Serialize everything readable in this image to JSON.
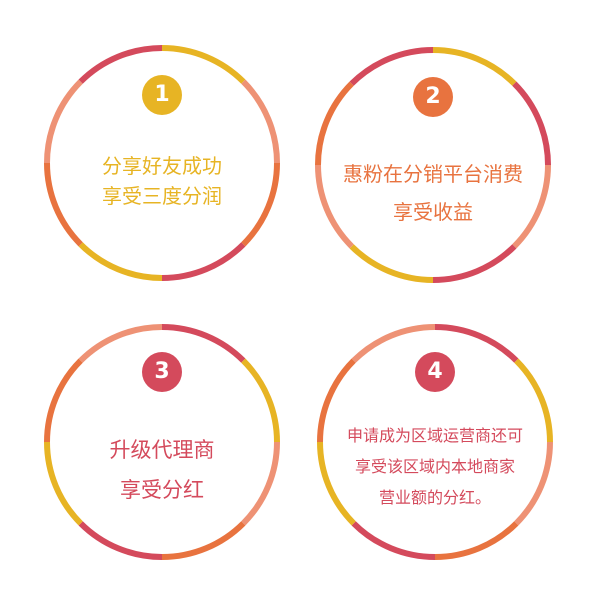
{
  "colors": {
    "yellow": "#e7b424",
    "orange": "#e8733f",
    "red": "#d44a5c",
    "salmon": "#ee9275"
  },
  "cards": [
    {
      "number": "1",
      "lines": [
        "分享好友成功",
        "享受三度分润"
      ],
      "text_color": "#e7b424",
      "badge_color": "#e7b424",
      "ring_segments": [
        "#e7b424",
        "#ee9275",
        "#e8733f",
        "#d44a5c",
        "#e7b424",
        "#e8733f",
        "#ee9275",
        "#d44a5c"
      ]
    },
    {
      "number": "2",
      "lines": [
        "惠粉在分销平台消费",
        "享受收益"
      ],
      "text_color": "#e8733f",
      "badge_color": "#e8733f",
      "ring_segments": [
        "#e7b424",
        "#d44a5c",
        "#ee9275",
        "#d44a5c",
        "#e7b424",
        "#ee9275",
        "#e8733f",
        "#d44a5c"
      ]
    },
    {
      "number": "3",
      "lines": [
        "升级代理商",
        "享受分红"
      ],
      "text_color": "#d44a5c",
      "badge_color": "#d44a5c",
      "ring_segments": [
        "#d44a5c",
        "#e7b424",
        "#ee9275",
        "#e8733f",
        "#d44a5c",
        "#e7b424",
        "#e8733f",
        "#ee9275"
      ]
    },
    {
      "number": "4",
      "lines": [
        "申请成为区域运营商还可",
        "享受该区域内本地商家",
        "营业额的分红。"
      ],
      "text_color": "#d44a5c",
      "badge_color": "#d44a5c",
      "ring_segments": [
        "#d44a5c",
        "#e7b424",
        "#ee9275",
        "#e8733f",
        "#d44a5c",
        "#e7b424",
        "#e8733f",
        "#ee9275"
      ]
    }
  ]
}
